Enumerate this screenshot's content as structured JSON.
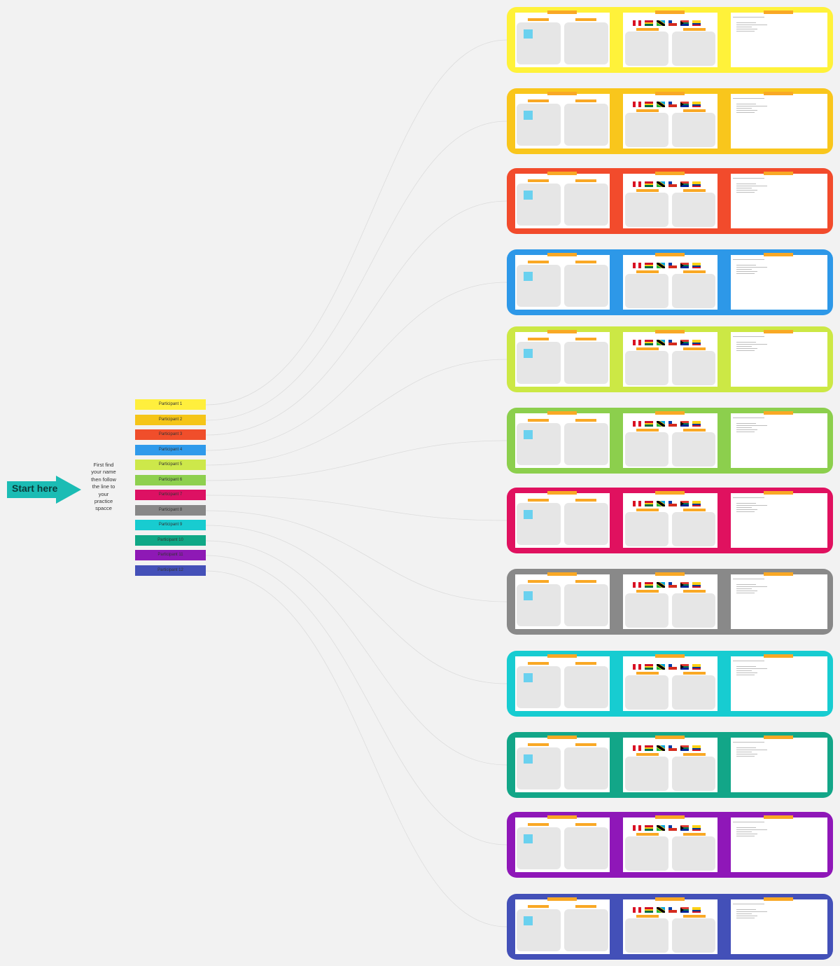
{
  "start": {
    "label": "Start here",
    "color": "#1bbcb4"
  },
  "instructions": [
    "First find",
    "your name",
    "then follow",
    "the line to",
    "your",
    "practice",
    "spacce"
  ],
  "participants": [
    {
      "label": "Participant 1",
      "color": "#ffef3d"
    },
    {
      "label": "Participant 2",
      "color": "#f5c518"
    },
    {
      "label": "Participant 3",
      "color": "#f04e2b"
    },
    {
      "label": "Participant 4",
      "color": "#2f9aeb"
    },
    {
      "label": "Participant 5",
      "color": "#cde84a"
    },
    {
      "label": "Participant 6",
      "color": "#8ed04f"
    },
    {
      "label": "Participant 7",
      "color": "#dd1163"
    },
    {
      "label": "Participant 8",
      "color": "#888888"
    },
    {
      "label": "Participant 9",
      "color": "#18ccd0"
    },
    {
      "label": "Participant 10",
      "color": "#10a886"
    },
    {
      "label": "Participant 11",
      "color": "#8e19b5"
    },
    {
      "label": "Participant 12",
      "color": "#4450b8"
    }
  ],
  "frame_colors": [
    "#fff23a",
    "#f9c61c",
    "#f24b2c",
    "#2d98e8",
    "#cce845",
    "#8ccf4d",
    "#e0115f",
    "#898989",
    "#17ccd1",
    "#12a688",
    "#8f17b8",
    "#4350b8"
  ],
  "flag_names": [
    "peru-flag",
    "ghana-flag",
    "tanzania-flag",
    "chile-flag",
    "south-africa-flag",
    "colombia-flag"
  ]
}
